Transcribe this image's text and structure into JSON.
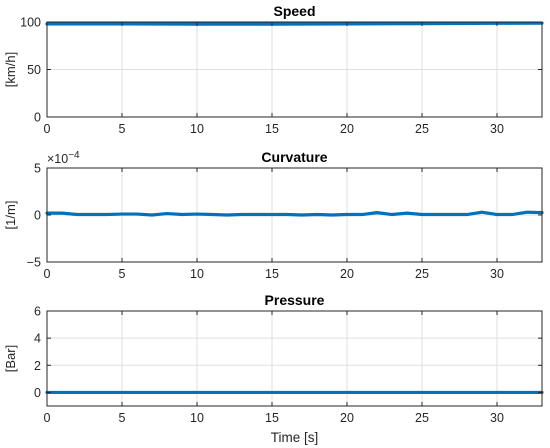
{
  "colors": {
    "series": "#0072bd",
    "axis": "#262626",
    "grid": "#dfdfdf"
  },
  "chart_data": [
    {
      "type": "line",
      "title": "Speed",
      "ylabel": "[km/h]",
      "xlabel": "",
      "xlim": [
        0,
        33
      ],
      "ylim": [
        0,
        100
      ],
      "xticks": [
        0,
        5,
        10,
        15,
        20,
        25,
        30
      ],
      "yticks": [
        0,
        50,
        100
      ],
      "exponent_label": "",
      "grid": true,
      "series": [
        {
          "x": [
            0,
            5,
            10,
            15,
            20,
            25,
            30,
            33
          ],
          "y": [
            98,
            98,
            97.8,
            97.8,
            98,
            98.3,
            98.6,
            98.8
          ]
        }
      ]
    },
    {
      "type": "line",
      "title": "Curvature",
      "ylabel": "[1/m]",
      "xlabel": "",
      "xlim": [
        0,
        33
      ],
      "ylim": [
        -5,
        5
      ],
      "xticks": [
        0,
        5,
        10,
        15,
        20,
        25,
        30
      ],
      "yticks": [
        -5,
        0,
        5
      ],
      "exponent_label": "×10",
      "exponent_power": "−4",
      "grid": true,
      "series": [
        {
          "x": [
            0,
            1,
            2,
            3,
            4,
            5,
            6,
            7,
            8,
            9,
            10,
            11,
            12,
            13,
            14,
            15,
            16,
            17,
            18,
            19,
            20,
            21,
            22,
            23,
            24,
            25,
            26,
            27,
            28,
            29,
            30,
            31,
            32,
            33
          ],
          "y": [
            0.2,
            0.2,
            0.05,
            0.05,
            0.05,
            0.1,
            0.1,
            0.0,
            0.15,
            0.05,
            0.1,
            0.05,
            0.0,
            0.05,
            0.05,
            0.05,
            0.05,
            0.0,
            0.05,
            0.0,
            0.05,
            0.05,
            0.25,
            0.05,
            0.2,
            0.05,
            0.05,
            0.05,
            0.05,
            0.3,
            0.05,
            0.05,
            0.3,
            0.25
          ]
        }
      ]
    },
    {
      "type": "line",
      "title": "Pressure",
      "ylabel": "[Bar]",
      "xlabel": "Time [s]",
      "xlim": [
        0,
        33
      ],
      "ylim": [
        -1,
        6
      ],
      "xticks": [
        0,
        5,
        10,
        15,
        20,
        25,
        30
      ],
      "yticks": [
        0,
        2,
        4,
        6
      ],
      "exponent_label": "",
      "grid": true,
      "series": [
        {
          "x": [
            0,
            5,
            10,
            15,
            20,
            25,
            30,
            33
          ],
          "y": [
            0,
            0,
            0,
            0,
            0,
            0,
            0,
            0
          ]
        }
      ]
    }
  ]
}
